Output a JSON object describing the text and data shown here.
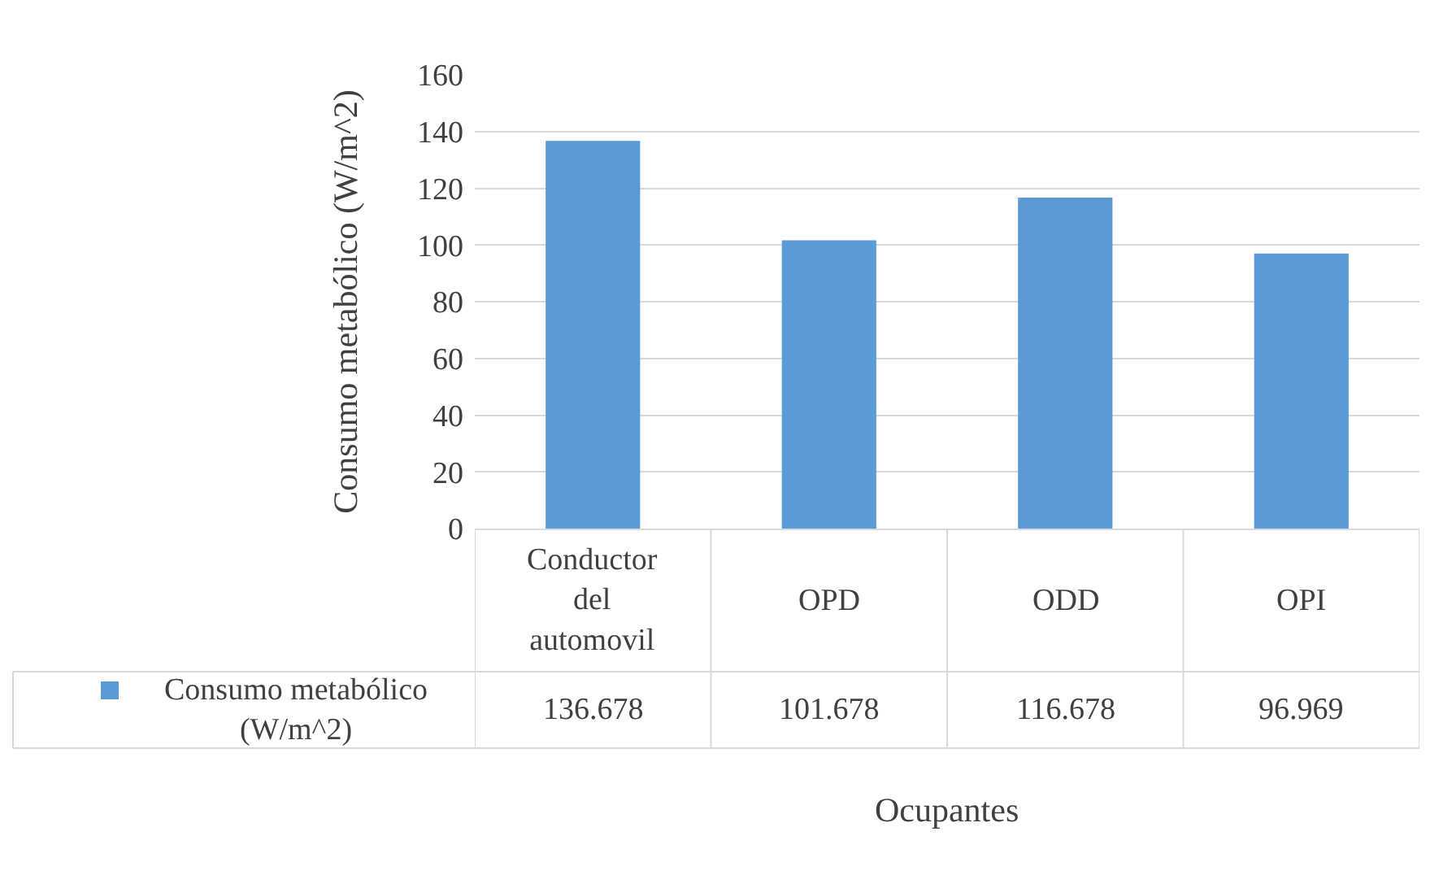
{
  "chart_data": {
    "type": "bar",
    "categories": [
      "Conductor del automovil",
      "OPD",
      "ODD",
      "OPI"
    ],
    "series": [
      {
        "name": "Consumo metabólico (W/m^2)",
        "color": "#5b9bd5",
        "values": [
          136.678,
          101.678,
          116.678,
          96.969
        ]
      }
    ],
    "xlabel": "Ocupantes",
    "ylabel": "Consumo metabólico (W/m^2)",
    "ylim": [
      0,
      160
    ],
    "yticks": [
      0,
      20,
      40,
      60,
      80,
      100,
      120,
      140,
      160
    ],
    "grid": "y",
    "legend": "bottom",
    "data_labels": true
  }
}
